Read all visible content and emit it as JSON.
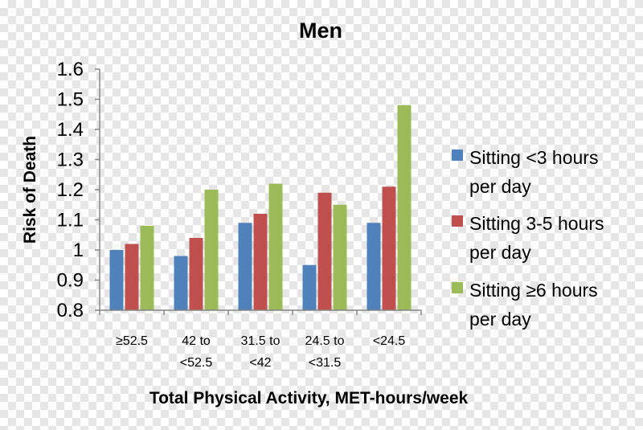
{
  "chart_data": {
    "type": "bar",
    "title": "Men",
    "xlabel": "Total Physical Activity, MET-hours/week",
    "ylabel": "Risk of Death",
    "ylim": [
      0.8,
      1.6
    ],
    "yticks": [
      "0.8",
      "0.9",
      "1",
      "1.1",
      "1.2",
      "1.3",
      "1.4",
      "1.5",
      "1.6"
    ],
    "categories": [
      "≥52.5",
      "42 to <52.5",
      "31.5 to <42",
      "24.5 to <31.5",
      "<24.5"
    ],
    "category_lines": [
      [
        "≥52.5"
      ],
      [
        "42 to",
        "<52.5"
      ],
      [
        "31.5 to",
        "<42"
      ],
      [
        "24.5 to",
        "<31.5"
      ],
      [
        "<24.5"
      ]
    ],
    "series": [
      {
        "name": "Sitting <3 hours per day",
        "name_lines": [
          "Sitting <3 hours",
          "per day"
        ],
        "color": "#4f81bd",
        "values": [
          1.0,
          0.98,
          1.09,
          0.95,
          1.09
        ]
      },
      {
        "name": "Sitting 3-5 hours per day",
        "name_lines": [
          "Sitting 3-5 hours",
          "per day"
        ],
        "color": "#c0504d",
        "values": [
          1.02,
          1.04,
          1.12,
          1.19,
          1.21
        ]
      },
      {
        "name": "Sitting ≥6 hours per day",
        "name_lines": [
          "Sitting ≥6 hours",
          "per day"
        ],
        "color": "#9bbb59",
        "values": [
          1.08,
          1.2,
          1.22,
          1.15,
          1.48
        ]
      }
    ],
    "grid": false,
    "legend": "right"
  }
}
